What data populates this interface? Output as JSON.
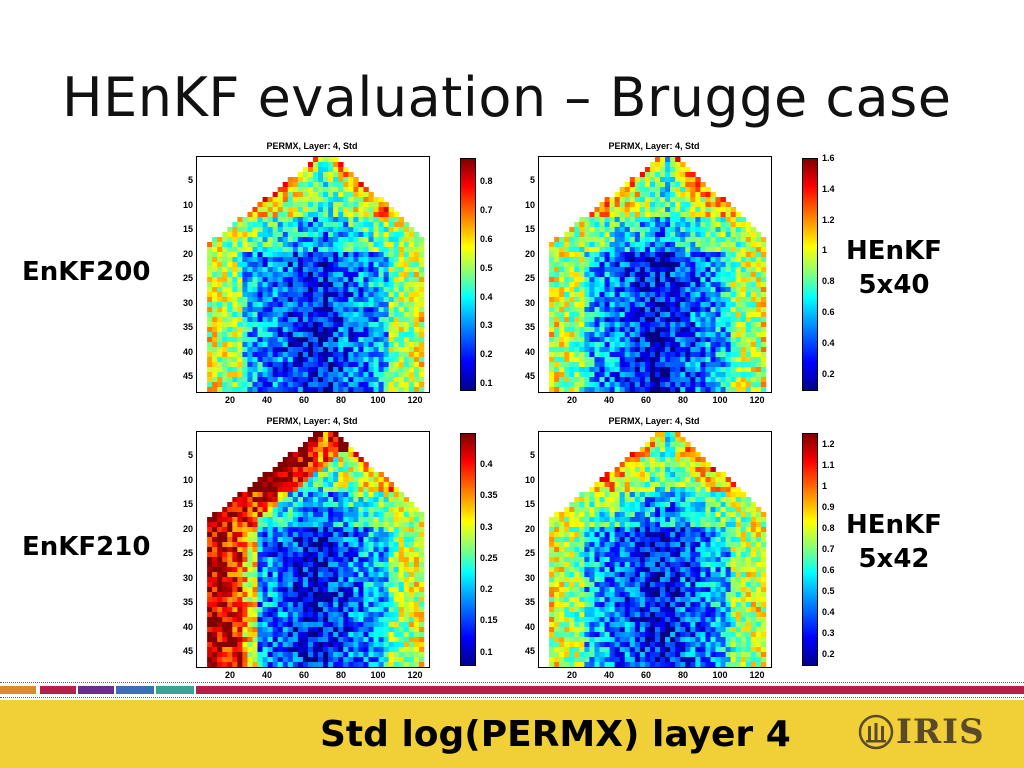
{
  "title": "HEnKF evaluation – Brugge case",
  "footer": {
    "text": "Std log(PERMX) layer 4",
    "logo_text": "IRIS",
    "logo_icon": "iris-emblem-icon"
  },
  "row_labels": [
    "EnKF200",
    "EnKF210"
  ],
  "col_labels": [
    [
      "HEnKF",
      "5x40"
    ],
    [
      "HEnKF",
      "5x42"
    ]
  ],
  "accent_stripes": [
    "#d98c2b",
    "#b51f4a",
    "#6b2f8a",
    "#3c6fb4",
    "#3aa394",
    "#b51f4a"
  ],
  "footer_color": "#f1cf37",
  "chart_data": [
    {
      "type": "heatmap",
      "title": "PERMX, Layer: 4, Std",
      "y_ticks": [
        "5",
        "10",
        "15",
        "20",
        "25",
        "30",
        "35",
        "40",
        "45"
      ],
      "x_ticks": [
        "20",
        "40",
        "60",
        "80",
        "100",
        "120"
      ],
      "colorbar_ticks": [
        "0.8",
        "0.7",
        "0.6",
        "0.5",
        "0.4",
        "0.3",
        "0.2",
        "0.1"
      ],
      "colorbar_range": [
        0.08,
        0.88
      ],
      "colormap": "jet"
    },
    {
      "type": "heatmap",
      "title": "PERMX, Layer: 4, Std",
      "y_ticks": [
        "5",
        "10",
        "15",
        "20",
        "25",
        "30",
        "35",
        "40",
        "45"
      ],
      "x_ticks": [
        "20",
        "40",
        "60",
        "80",
        "100",
        "120"
      ],
      "colorbar_ticks": [
        "1.6",
        "1.4",
        "1.2",
        "1",
        "0.8",
        "0.6",
        "0.4",
        "0.2"
      ],
      "colorbar_range": [
        0.1,
        1.6
      ],
      "colormap": "jet"
    },
    {
      "type": "heatmap",
      "title": "PERMX, Layer: 4, Std",
      "y_ticks": [
        "5",
        "10",
        "15",
        "20",
        "25",
        "30",
        "35",
        "40",
        "45"
      ],
      "x_ticks": [
        "20",
        "40",
        "60",
        "80",
        "100",
        "120"
      ],
      "colorbar_ticks": [
        "0.4",
        "0.35",
        "0.3",
        "0.25",
        "0.2",
        "0.15",
        "0.1"
      ],
      "colorbar_range": [
        0.08,
        0.45
      ],
      "colormap": "jet"
    },
    {
      "type": "heatmap",
      "title": "PERMX, Layer: 4, Std",
      "y_ticks": [
        "5",
        "10",
        "15",
        "20",
        "25",
        "30",
        "35",
        "40",
        "45"
      ],
      "x_ticks": [
        "20",
        "40",
        "60",
        "80",
        "100",
        "120"
      ],
      "colorbar_ticks": [
        "1.2",
        "1.1",
        "1",
        "0.9",
        "0.8",
        "0.7",
        "0.6",
        "0.5",
        "0.4",
        "0.3",
        "0.2"
      ],
      "colorbar_range": [
        0.15,
        1.25
      ],
      "colormap": "jet"
    }
  ]
}
